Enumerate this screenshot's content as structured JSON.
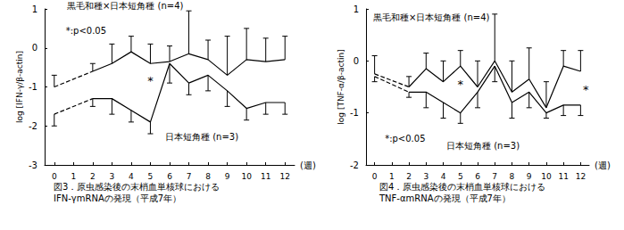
{
  "chart_data": [
    {
      "type": "line",
      "title": "図3．原虫感染後の末梢血単核球における\nIFN-γmRNAの発現（平成7年）",
      "x_label": "(週)",
      "y_label": "log [IFN-γ/β-actin]",
      "x": [
        0,
        1,
        2,
        3,
        4,
        5,
        6,
        7,
        8,
        9,
        10,
        11,
        12
      ],
      "xlim": [
        -0.5,
        12.5
      ],
      "xticks": [
        0,
        1,
        2,
        3,
        4,
        5,
        6,
        7,
        8,
        9,
        10,
        11,
        12
      ],
      "ylim": [
        -3,
        1
      ],
      "yticks": [
        -3,
        -2,
        -1,
        0,
        1
      ],
      "grid": false,
      "series": [
        {
          "name": "黒毛和種×日本短角種 (n=4)",
          "color": "#000000",
          "values": [
            -1.0,
            null,
            -0.6,
            -0.4,
            -0.1,
            -0.4,
            -0.35,
            -0.15,
            -0.3,
            -0.7,
            -0.3,
            -0.35,
            -0.3
          ],
          "yerr_plus": [
            0.3,
            null,
            0.2,
            0.5,
            0.4,
            0.5,
            0.4,
            1.1,
            0.5,
            1.0,
            0.8,
            0.6,
            0.6
          ]
        },
        {
          "name": "日本短角種 (n=3)",
          "color": "#000000",
          "values": [
            -1.7,
            null,
            -1.3,
            -1.3,
            -1.6,
            -1.9,
            -0.4,
            -0.9,
            -0.7,
            -1.1,
            -1.55,
            -1.4,
            -1.4
          ],
          "yerr_minus": [
            0.3,
            null,
            0.2,
            0.4,
            0.3,
            0.3,
            0.5,
            0.3,
            0.4,
            0.4,
            0.3,
            0.3,
            0.3
          ]
        }
      ],
      "annotations": [
        {
          "text": "*:p<0.05",
          "x": 0.6,
          "y": 0.45
        },
        {
          "text": "*",
          "x": 5,
          "y": -0.85
        }
      ]
    },
    {
      "type": "line",
      "title": "図4．原虫感染後の末梢血単核球における\nTNF-αmRNAの発現（平成7年）",
      "x_label": "(週)",
      "y_label": "log [TNF-α/β-actin]",
      "x": [
        0,
        1,
        2,
        3,
        4,
        5,
        6,
        7,
        8,
        9,
        10,
        11,
        12
      ],
      "xlim": [
        -0.5,
        12.5
      ],
      "xticks": [
        0,
        1,
        2,
        3,
        4,
        5,
        6,
        7,
        8,
        9,
        10,
        11,
        12
      ],
      "ylim": [
        -2,
        1
      ],
      "yticks": [
        -2,
        -1,
        0,
        1
      ],
      "grid": false,
      "series": [
        {
          "name": "黒毛和種×日本短角種 (n=4)",
          "color": "#000000",
          "values": [
            -0.25,
            null,
            -0.5,
            -0.15,
            -0.4,
            -0.1,
            -0.5,
            0.0,
            -0.6,
            -0.35,
            -0.9,
            -0.1,
            -0.2
          ],
          "yerr_plus": [
            0.35,
            null,
            0.2,
            0.3,
            0.4,
            0.3,
            0.5,
            0.9,
            0.6,
            0.6,
            0.5,
            0.3,
            0.4
          ]
        },
        {
          "name": "日本短角種 (n=3)",
          "color": "#000000",
          "values": [
            -0.3,
            null,
            -0.6,
            -0.6,
            -0.8,
            -1.0,
            -0.6,
            -0.1,
            -0.8,
            -0.6,
            -1.0,
            -0.85,
            -0.85
          ],
          "yerr_minus": [
            0.1,
            null,
            0.1,
            0.3,
            0.3,
            0.2,
            0.3,
            0.3,
            0.3,
            0.3,
            0.1,
            0.2,
            0.2
          ]
        }
      ],
      "annotations": [
        {
          "text": "*:p<0.05",
          "x": 0.6,
          "y": -1.5
        },
        {
          "text": "*",
          "x": 5,
          "y": -0.45
        },
        {
          "text": "*",
          "x": 12.3,
          "y": -0.55
        }
      ]
    }
  ]
}
